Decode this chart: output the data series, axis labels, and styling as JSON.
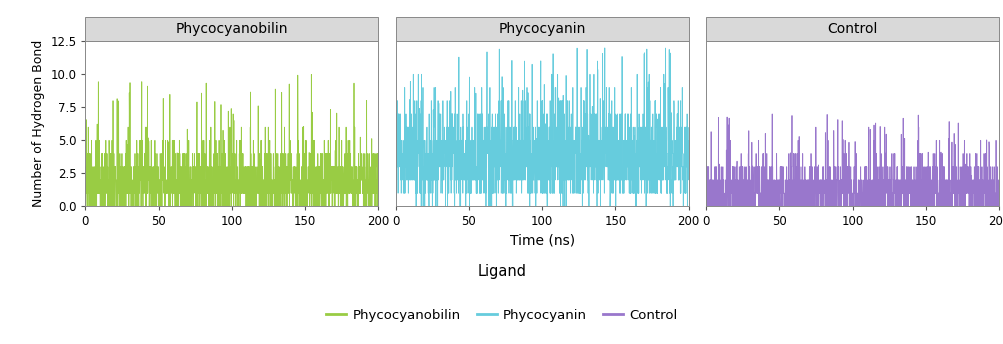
{
  "panel_titles": [
    "Phycocyanobilin",
    "Phycocyanin",
    "Control"
  ],
  "colors": [
    "#99cc44",
    "#66ccdd",
    "#9977cc"
  ],
  "ylabel": "Number of Hydrogen Bond",
  "xlabel": "Time (ns)",
  "legend_title": "Ligand",
  "legend_labels": [
    "Phycocyanobilin",
    "Phycocyanin",
    "Control"
  ],
  "ylim": [
    0,
    12.5
  ],
  "yticks": [
    0,
    2.5,
    5,
    7.5,
    10,
    12.5
  ],
  "xlim": [
    0,
    200
  ],
  "xticks": [
    0,
    50,
    100,
    150,
    200
  ],
  "n_points": 2000,
  "panel_bg": "#ffffff",
  "strip_bg": "#d9d9d9",
  "fig_bg": "#ffffff",
  "seeds": [
    42,
    123,
    777
  ],
  "mean_values": [
    1.8,
    3.8,
    1.2
  ],
  "max_spikes": [
    10,
    12,
    7
  ],
  "linewidth": 0.6
}
